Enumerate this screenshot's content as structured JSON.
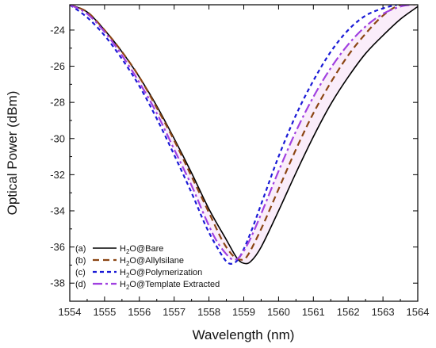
{
  "chart_data": {
    "type": "line",
    "xlabel": "Wavelength (nm)",
    "ylabel": "Optical Power (dBm)",
    "xlim": [
      1554,
      1564
    ],
    "ylim": [
      -39,
      -22.6
    ],
    "x_ticks": [
      1554,
      1555,
      1556,
      1557,
      1558,
      1559,
      1560,
      1561,
      1562,
      1563,
      1564
    ],
    "y_ticks": [
      -24,
      -26,
      -28,
      -30,
      -32,
      -34,
      -36,
      -38
    ],
    "grid": false,
    "legend_position": "bottom-left",
    "series": [
      {
        "marker": "(a)",
        "name_prefix": "H",
        "name_sub": "2",
        "name_suffix": "O@Bare",
        "color": "#000000",
        "dash": "solid",
        "x": [
          1554.0,
          1554.5,
          1555.0,
          1555.5,
          1556.0,
          1556.5,
          1557.0,
          1557.5,
          1558.0,
          1558.5,
          1558.8,
          1559.0,
          1559.2,
          1559.5,
          1560.0,
          1560.5,
          1561.0,
          1561.5,
          1562.0,
          1562.5,
          1563.0,
          1563.5,
          1564.0
        ],
        "y": [
          -22.6,
          -23.0,
          -24.0,
          -25.2,
          -26.6,
          -28.2,
          -30.0,
          -31.9,
          -33.9,
          -35.6,
          -36.6,
          -36.9,
          -36.8,
          -36.0,
          -34.0,
          -31.9,
          -29.9,
          -28.1,
          -26.6,
          -25.3,
          -24.3,
          -23.4,
          -22.7
        ]
      },
      {
        "marker": "(b)",
        "name_prefix": "H",
        "name_sub": "2",
        "name_suffix": "O@Allylsilane",
        "color": "#8b4513",
        "dash": "8,5",
        "x": [
          1554.0,
          1554.5,
          1555.0,
          1555.5,
          1556.0,
          1556.5,
          1557.0,
          1557.5,
          1558.0,
          1558.4,
          1558.7,
          1558.9,
          1559.1,
          1559.5,
          1560.0,
          1560.5,
          1561.0,
          1561.5,
          1562.0,
          1562.5,
          1563.0,
          1563.5,
          1564.0
        ],
        "y": [
          -22.6,
          -23.0,
          -24.0,
          -25.2,
          -26.6,
          -28.3,
          -30.1,
          -32.1,
          -34.1,
          -35.7,
          -36.5,
          -36.7,
          -36.5,
          -35.0,
          -32.8,
          -30.6,
          -28.6,
          -26.9,
          -25.4,
          -24.2,
          -23.2,
          -22.6,
          -22.6
        ]
      },
      {
        "marker": "(c)",
        "name_prefix": "H",
        "name_sub": "2",
        "name_suffix": "O@Polymerization",
        "color": "#1a1ad6",
        "dash": "5,4",
        "x": [
          1554.0,
          1554.5,
          1555.0,
          1555.5,
          1556.0,
          1556.5,
          1557.0,
          1557.5,
          1557.9,
          1558.2,
          1558.5,
          1558.7,
          1558.9,
          1559.2,
          1559.6,
          1560.0,
          1560.5,
          1561.0,
          1561.5,
          1562.0,
          1562.5,
          1563.0,
          1563.4
        ],
        "y": [
          -22.6,
          -23.3,
          -24.3,
          -25.6,
          -27.1,
          -28.9,
          -30.9,
          -33.0,
          -34.8,
          -35.9,
          -36.8,
          -36.9,
          -36.5,
          -35.2,
          -33.1,
          -31.0,
          -28.7,
          -26.8,
          -25.2,
          -24.0,
          -23.2,
          -22.8,
          -22.6
        ]
      },
      {
        "marker": "(d)",
        "name_prefix": "H",
        "name_sub": "2",
        "name_suffix": "O@Template Extracted",
        "color": "#a040e0",
        "dash": "12,4,3,4",
        "x": [
          1554.0,
          1554.5,
          1555.0,
          1555.5,
          1556.0,
          1556.5,
          1557.0,
          1557.5,
          1557.9,
          1558.2,
          1558.5,
          1558.7,
          1558.9,
          1559.2,
          1559.6,
          1560.0,
          1560.5,
          1561.0,
          1561.5,
          1562.0,
          1562.5,
          1563.0,
          1563.5,
          1563.8
        ],
        "y": [
          -22.6,
          -23.1,
          -24.1,
          -25.4,
          -26.9,
          -28.6,
          -30.6,
          -32.6,
          -34.4,
          -35.6,
          -36.4,
          -36.7,
          -36.5,
          -35.5,
          -33.7,
          -31.8,
          -29.6,
          -27.7,
          -26.1,
          -24.8,
          -23.8,
          -23.1,
          -22.7,
          -22.6
        ]
      }
    ]
  }
}
